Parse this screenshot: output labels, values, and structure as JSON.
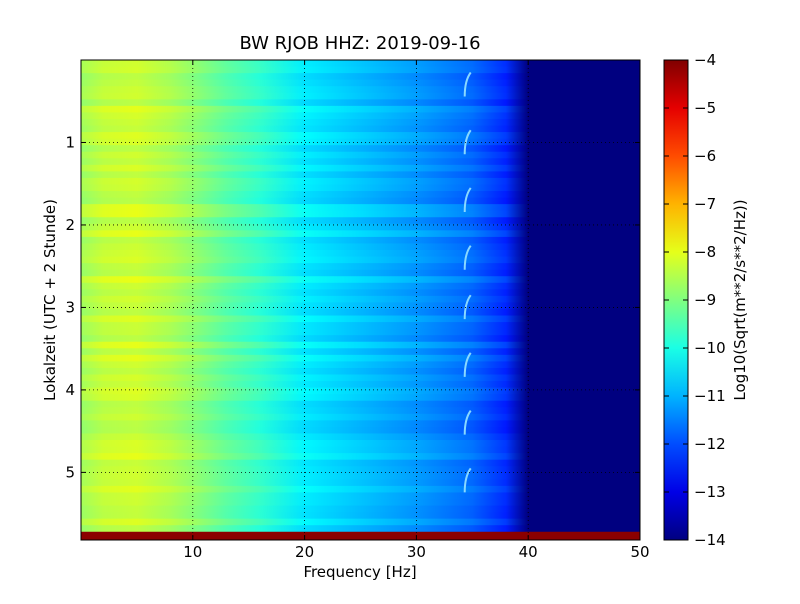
{
  "chart_data": {
    "type": "heatmap",
    "title": "BW RJOB HHZ: 2019-09-16",
    "xlabel": "Frequency [Hz]",
    "ylabel": "Lokalzeit (UTC + 2 Stunde)",
    "xlim": [
      0,
      50
    ],
    "ylim": [
      5.82,
      0
    ],
    "x_ticks": [
      10,
      20,
      30,
      40,
      50
    ],
    "y_ticks": [
      1,
      2,
      3,
      4,
      5
    ],
    "grid": true,
    "colormap": "jet",
    "colorbar": {
      "label": "Log10(Sqrt(m**2/s**2/Hz))",
      "range": [
        -14,
        -4
      ],
      "ticks": [
        -4,
        -5,
        -6,
        -7,
        -8,
        -9,
        -10,
        -11,
        -12,
        -13,
        -14
      ]
    },
    "profile": {
      "frequency_hz": [
        0,
        2,
        5,
        8,
        10,
        13,
        16,
        20,
        25,
        30,
        35,
        38,
        40,
        50
      ],
      "log10_amplitude": [
        -8.6,
        -8.3,
        -8.2,
        -8.5,
        -8.8,
        -9.3,
        -9.7,
        -10.4,
        -10.8,
        -11.2,
        -11.7,
        -12.3,
        -14,
        -14
      ]
    },
    "annotations": [
      {
        "kind": "tonal-spike",
        "frequency_hz": 34.5,
        "times_h": [
          0.2,
          0.9,
          1.6,
          2.3,
          2.9,
          3.6,
          4.3,
          5.0
        ]
      },
      {
        "kind": "saturated-band",
        "time_from_h": 5.72,
        "time_to_h": 5.82,
        "log10_amplitude": -4
      }
    ]
  },
  "colors": {
    "background": "#ffffff",
    "frame": "#000000",
    "grid": "#000000",
    "saturated": "#8b0000"
  }
}
